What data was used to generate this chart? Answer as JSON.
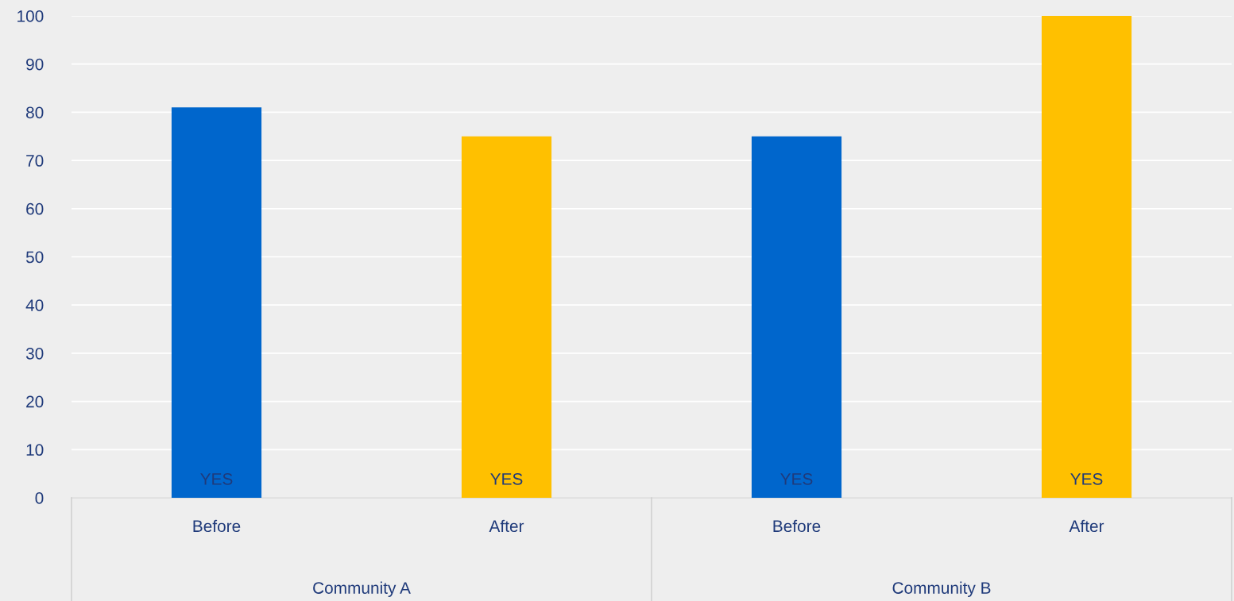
{
  "chart_data": {
    "type": "bar",
    "categories": [
      "Before",
      "After",
      "Before",
      "After"
    ],
    "values": [
      81,
      75,
      75,
      100
    ],
    "colors": [
      "#0066cc",
      "#ffc000",
      "#0066cc",
      "#ffc000"
    ],
    "value_labels": [
      "YES",
      "YES",
      "YES",
      "YES"
    ],
    "annotations": [
      "Community A",
      "Community B"
    ],
    "ylim": [
      0,
      100
    ],
    "yticks": [
      0,
      10,
      20,
      30,
      40,
      50,
      60,
      70,
      80,
      90,
      100
    ],
    "grid": "y"
  }
}
